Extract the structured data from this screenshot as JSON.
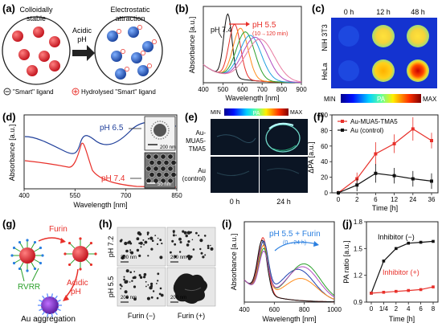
{
  "panels": {
    "a": {
      "label": "(a)",
      "left_title": [
        "Colloidally",
        "stable"
      ],
      "right_title": [
        "Electrostatic",
        "attraction"
      ],
      "arrow": [
        "Acidic",
        "pH"
      ],
      "legend_smart": "\"Smart\" ligand",
      "legend_hydro": "Hydrolysed \"Smart\" ligand"
    },
    "b": {
      "label": "(b)",
      "ann_ph74": "pH 7.4",
      "ann_ph55": "pH 5.5",
      "ann_time": "(10→120 min)",
      "xlabel": "Wavelength [nm]",
      "ylabel": "Absorbance [a.u.]",
      "xticks": [
        "400",
        "500",
        "600",
        "700",
        "800",
        "900"
      ]
    },
    "c": {
      "label": "(c)",
      "cols": [
        "0 h",
        "12 h",
        "48 h"
      ],
      "rows": [
        "NIH 3T3",
        "HeLa"
      ],
      "cbar_min": "MIN",
      "cbar_mid": "PA",
      "cbar_max": "MAX"
    },
    "d": {
      "label": "(d)",
      "ann_ph65": "pH 6.5",
      "ann_ph74": "pH 7.4",
      "scale1": "200 nm",
      "scale2": "50 nm",
      "xlabel": "Wavelength [nm]",
      "ylabel": "Absorbance [a.u.]",
      "xticks": [
        "400",
        "550",
        "700",
        "850"
      ]
    },
    "e": {
      "label": "(e)",
      "cbar_min": "MIN",
      "cbar_mid": "PA",
      "cbar_max": "MAX",
      "row1": [
        "Au-",
        "MUA5-",
        "TMA5"
      ],
      "row2": [
        "Au",
        "(control)"
      ],
      "cols": [
        "0 h",
        "24 h"
      ]
    },
    "f": {
      "label": "(f)",
      "legend1": "Au-MUA5-TMA5",
      "legend2": "Au (control)",
      "xlabel": "Time [h]",
      "ylabel": "ΔPA [a.u.]",
      "xticks": [
        "0",
        "2",
        "6",
        "12",
        "24",
        "36"
      ]
    },
    "g": {
      "label": "(g)",
      "furin": "Furin",
      "rvrr": "RVRR",
      "acidic": [
        "Acidic",
        "pH"
      ],
      "aggregation": "Au aggregation"
    },
    "h": {
      "label": "(h)",
      "rows": [
        "pH 7.2",
        "pH 5.5"
      ],
      "cols": [
        "Furin (−)",
        "Furin (+)"
      ],
      "scale": "200 nm"
    },
    "i": {
      "label": "(i)",
      "ann": "pH 5.5 + Furin",
      "ann_time": "(0→24 h)",
      "xlabel": "Wavelength [nm]",
      "ylabel": "Absorbance [a.u.]",
      "xticks": [
        "400",
        "600",
        "800",
        "1000"
      ]
    },
    "j": {
      "label": "(j)",
      "inhibitor_neg": "Inhibitor (−)",
      "inhibitor_pos": "Inhibitor (+)",
      "xlabel": "Time [h]",
      "ylabel": "PA ratio [a.u.]",
      "xticks": [
        "0",
        "1/4",
        "2",
        "4",
        "6",
        "8"
      ],
      "yticks": [
        "0.9",
        "1.2",
        "1.5",
        "1.8"
      ]
    }
  },
  "colors": {
    "red": "#e8302a",
    "blue": "#1f4fc9",
    "black": "#111111"
  },
  "chart_data": [
    {
      "panel": "f",
      "type": "line",
      "x": [
        0,
        2,
        6,
        12,
        24,
        36
      ],
      "xlabel": "Time [h]",
      "ylabel": "ΔPA [a.u.]",
      "ylim": [
        0,
        100
      ],
      "series": [
        {
          "name": "Au-MUA5-TMA5",
          "values": [
            0,
            18,
            50,
            63,
            82,
            67
          ],
          "err": [
            3,
            8,
            15,
            12,
            15,
            10
          ]
        },
        {
          "name": "Au (control)",
          "values": [
            0,
            10,
            25,
            22,
            18,
            15
          ],
          "err": [
            2,
            8,
            12,
            10,
            10,
            10
          ]
        }
      ]
    },
    {
      "panel": "j",
      "type": "line",
      "categories": [
        "0",
        "1/4",
        "2",
        "4",
        "6",
        "8"
      ],
      "xlabel": "Time [h]",
      "ylabel": "PA ratio [a.u.]",
      "ylim": [
        0.9,
        1.8
      ],
      "series": [
        {
          "name": "Inhibitor (−)",
          "values": [
            1.0,
            1.36,
            1.5,
            1.56,
            1.57,
            1.58
          ]
        },
        {
          "name": "Inhibitor (+)",
          "values": [
            1.0,
            1.01,
            1.02,
            1.03,
            1.04,
            1.07
          ]
        }
      ]
    }
  ]
}
